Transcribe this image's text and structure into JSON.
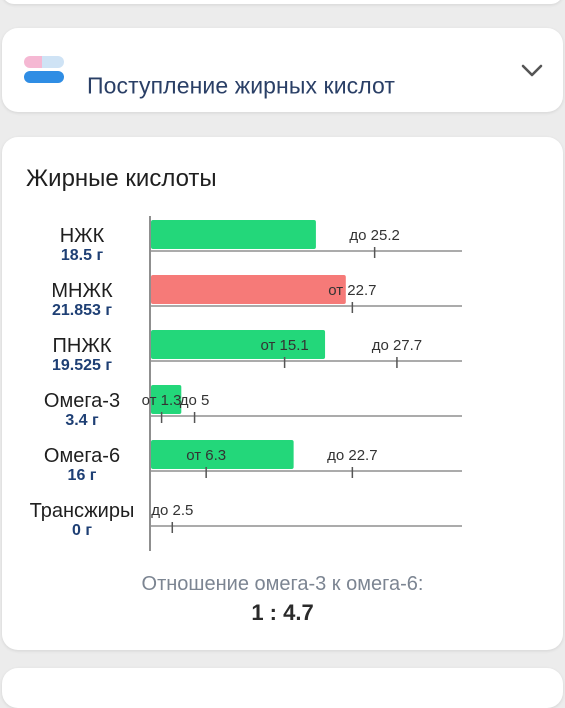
{
  "header": {
    "title": "Поступление жирных кислот",
    "icon": "nutrition-icon",
    "chevron_icon": "chevron-down-icon"
  },
  "section_title": "Жирные кислоты",
  "colors": {
    "ok": "#23d77a",
    "over": "#f67a78",
    "axis": "#8f8f8f",
    "name_text": "#1f1f1f",
    "amount_text": "#1e3f74"
  },
  "chart_data": {
    "type": "bar",
    "orientation": "horizontal",
    "xlim": [
      0,
      35
    ],
    "grid": false,
    "rows": [
      {
        "name": "НЖК",
        "amount_label": "18.5 г",
        "value": 18.5,
        "min": null,
        "max": 25.2,
        "min_label": "",
        "max_label": "до 25.2",
        "status": "ok"
      },
      {
        "name": "МНЖК",
        "amount_label": "21.853 г",
        "value": 21.853,
        "min": 22.7,
        "max": null,
        "min_label": "от 22.7",
        "max_label": "",
        "status": "over"
      },
      {
        "name": "ПНЖК",
        "amount_label": "19.525 г",
        "value": 19.525,
        "min": 15.1,
        "max": 27.7,
        "min_label": "от 15.1",
        "max_label": "до 27.7",
        "status": "ok"
      },
      {
        "name": "Омега-3",
        "amount_label": "3.4 г",
        "value": 3.4,
        "min": 1.3,
        "max": 5,
        "min_label": "от 1.3",
        "max_label": "до 5",
        "status": "ok"
      },
      {
        "name": "Омега-6",
        "amount_label": "16 г",
        "value": 16,
        "min": 6.3,
        "max": 22.7,
        "min_label": "от 6.3",
        "max_label": "до 22.7",
        "status": "ok"
      },
      {
        "name": "Трансжиры",
        "amount_label": "0 г",
        "value": 0,
        "min": null,
        "max": 2.5,
        "min_label": "",
        "max_label": "до 2.5",
        "status": "ok"
      }
    ]
  },
  "ratio": {
    "label": "Отношение омега-3 к омега-6:",
    "value": "1 : 4.7"
  }
}
